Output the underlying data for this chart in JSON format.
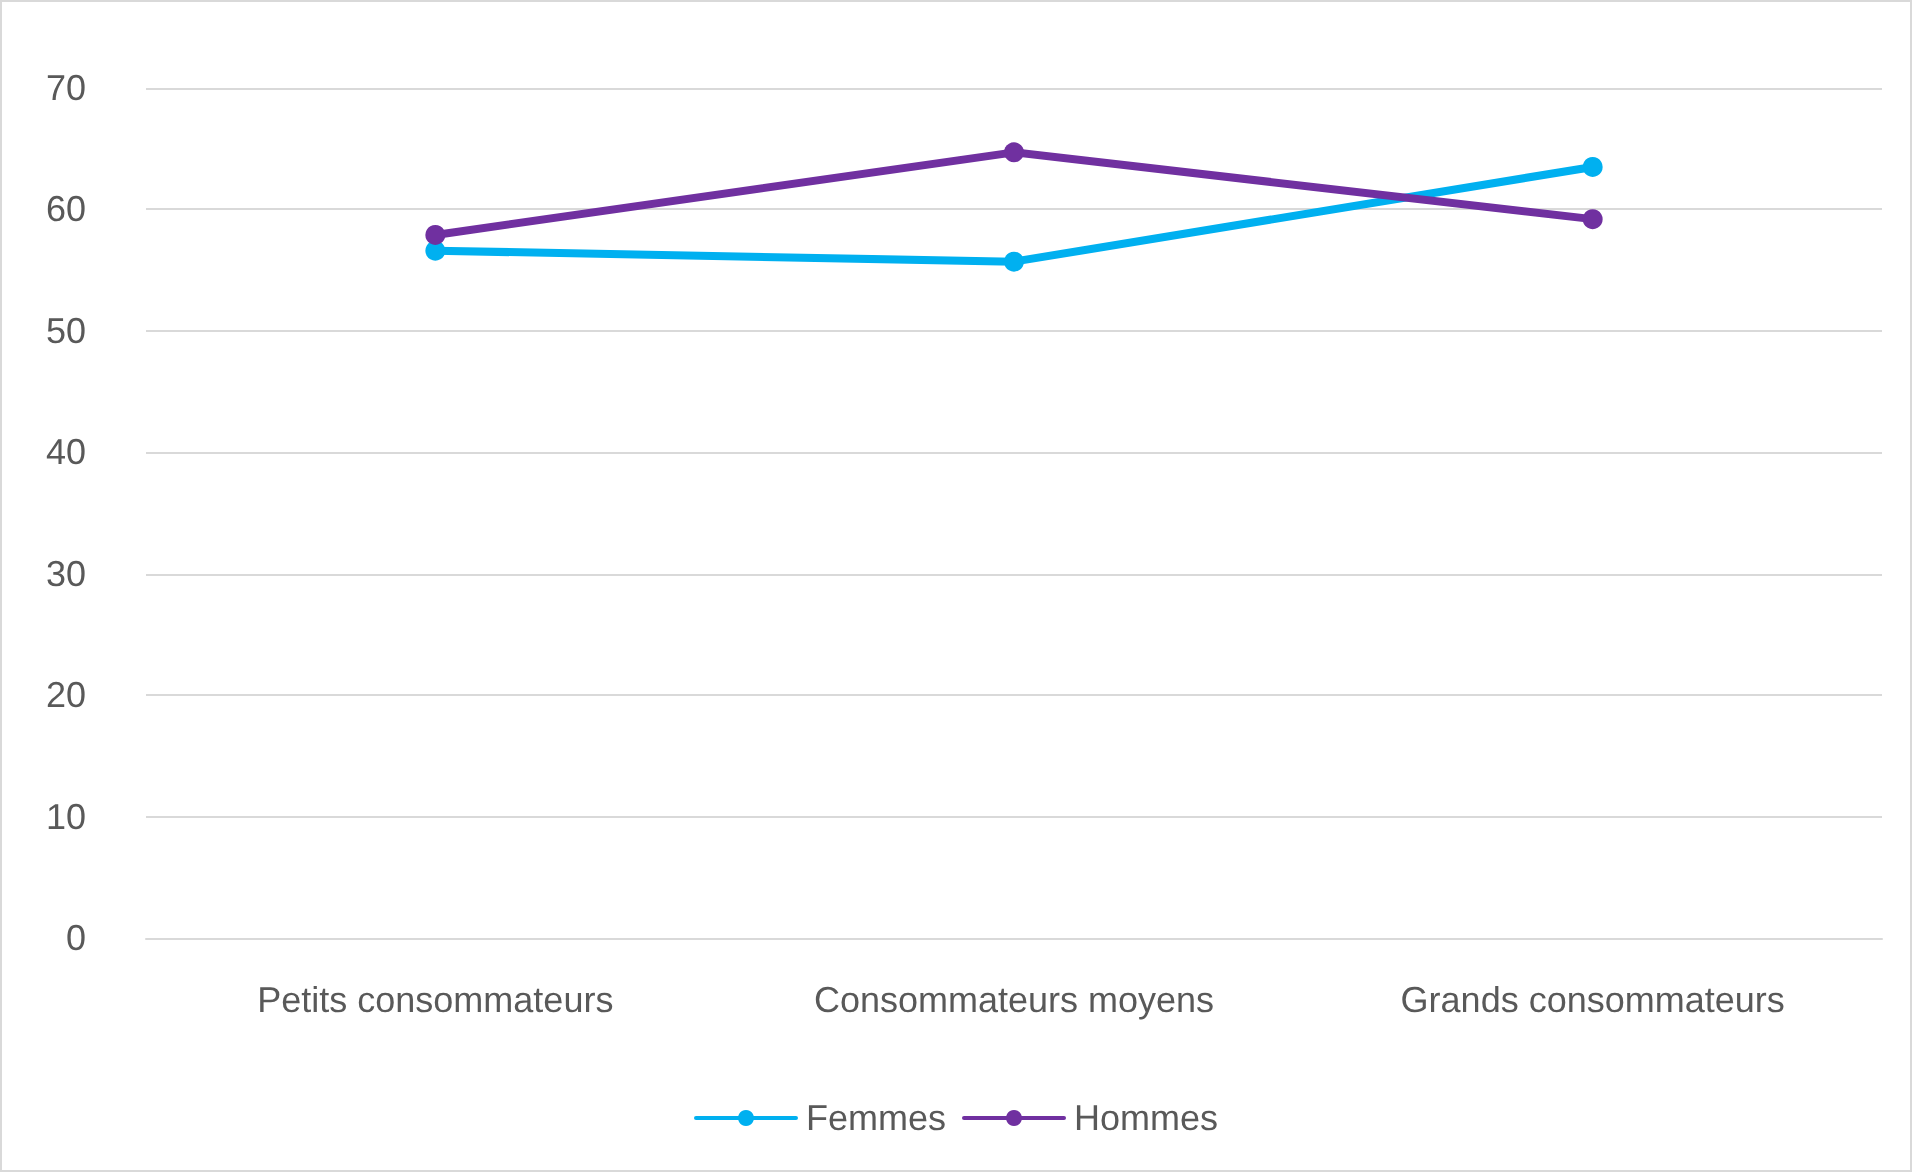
{
  "chart_data": {
    "type": "line",
    "categories": [
      "Petits consommateurs",
      "Consommateurs moyens",
      "Grands consommateurs"
    ],
    "series": [
      {
        "name": "Femmes",
        "color": "#00b0f0",
        "values": [
          56.6,
          55.7,
          63.5
        ]
      },
      {
        "name": "Hommes",
        "color": "#7030a0",
        "values": [
          57.9,
          64.7,
          59.2
        ]
      }
    ],
    "ylim": [
      0,
      70
    ],
    "yticks": [
      0,
      10,
      20,
      30,
      40,
      50,
      60,
      70
    ],
    "grid": "y",
    "legend": "bottom",
    "marker": "circle",
    "line_style": "solid"
  }
}
